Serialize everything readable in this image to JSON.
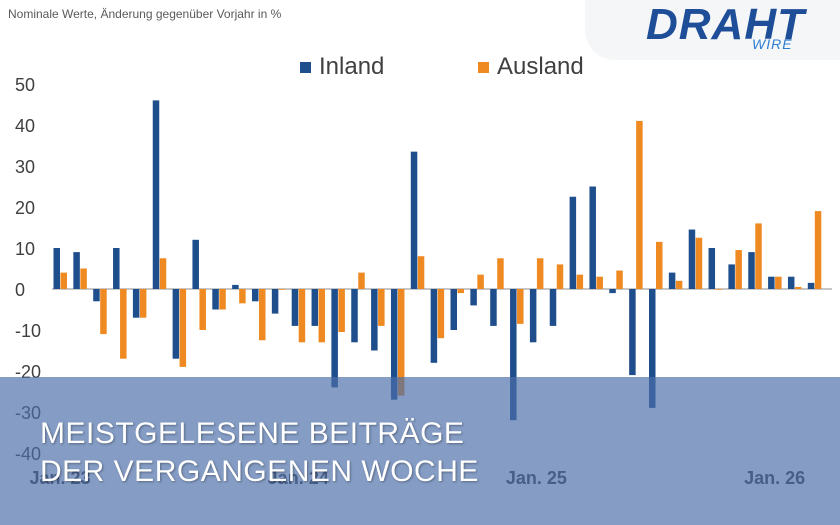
{
  "subtitle": "Nominale Werte, Änderung gegenüber Vorjahr in %",
  "logo": {
    "main": "DRAHT",
    "sub": "WIRE"
  },
  "headline": {
    "line1": "MEISTGELESENE BEITRÄGE",
    "line2": "DER VERGANGENEN WOCHE"
  },
  "colors": {
    "inland": "#1f4e8c",
    "ausland": "#ef8a22",
    "overlay": "#4b6eaa"
  },
  "chart_data": {
    "type": "bar",
    "title": "",
    "subtitle": "Nominale Werte, Änderung gegenüber Vorjahr in %",
    "xlabel": "",
    "ylabel": "",
    "ylim": [
      -40,
      50
    ],
    "yticks": [
      50,
      40,
      30,
      20,
      10,
      0,
      -10,
      -20,
      -30,
      -40
    ],
    "grid": false,
    "legend": "top",
    "x_tick_labels": [
      {
        "label": "Jan. 23",
        "index": 0
      },
      {
        "label": "Jan. 24",
        "index": 12
      },
      {
        "label": "Jan. 25",
        "index": 24
      },
      {
        "label": "Jan. 26",
        "index": 36
      }
    ],
    "series": [
      {
        "name": "Inland",
        "color": "#1f4e8c",
        "values": [
          10,
          9,
          -3,
          10,
          -7,
          46,
          -17,
          12,
          -5,
          1,
          -3,
          -6,
          -9,
          -9,
          -24,
          -13,
          -15,
          -27,
          33.5,
          -18,
          -10,
          -4,
          -9,
          -32,
          -13,
          -9,
          22.5,
          25,
          -1,
          -21,
          -29,
          4,
          14.5,
          10,
          6,
          9,
          3,
          3,
          1.5
        ]
      },
      {
        "name": "Ausland",
        "color": "#ef8a22",
        "values": [
          4,
          5,
          -11,
          -17,
          -7,
          7.5,
          -19,
          -10,
          -5,
          -3.5,
          -12.5,
          0,
          -13,
          -13,
          -10.5,
          4,
          -9,
          -26,
          8,
          -12,
          -1,
          3.5,
          7.5,
          -8.5,
          7.5,
          6,
          3.5,
          3,
          4.5,
          41,
          11.5,
          2,
          12.5,
          0,
          9.5,
          16,
          3,
          0.5,
          19
        ]
      }
    ]
  }
}
